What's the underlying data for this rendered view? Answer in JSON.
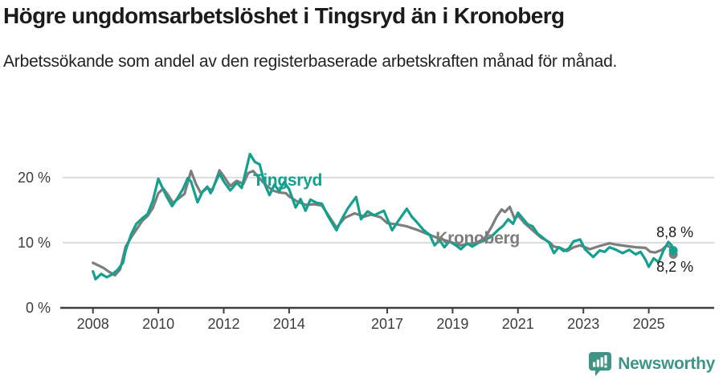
{
  "chart_data": {
    "type": "line",
    "title": "Högre ungdomsarbetslöshet i Tingsryd än i Kronoberg",
    "subtitle": "Arbetssökande som andel av den registerbaserade arbetskraften månad för månad.",
    "xlabel": "",
    "ylabel": "",
    "unit": "%",
    "xlim": [
      2007,
      2027
    ],
    "ylim": [
      0,
      23.8
    ],
    "grid": "horizontal",
    "x_ticks": [
      {
        "value": 2008,
        "label": "2008"
      },
      {
        "value": 2010,
        "label": "2010"
      },
      {
        "value": 2012,
        "label": "2012"
      },
      {
        "value": 2014,
        "label": "2014"
      },
      {
        "value": 2017,
        "label": "2017"
      },
      {
        "value": 2019,
        "label": "2019"
      },
      {
        "value": 2021,
        "label": "2021"
      },
      {
        "value": 2023,
        "label": "2023"
      },
      {
        "value": 2025,
        "label": "2025"
      }
    ],
    "y_ticks": [
      {
        "value": 0,
        "label": "0 %"
      },
      {
        "value": 10,
        "label": "10 %"
      },
      {
        "value": 20,
        "label": "20 %"
      }
    ],
    "colors": {
      "tingsryd": "#14A08E",
      "kronoberg": "#7d7d7d",
      "grid": "#dcdcdc",
      "axis": "#404040",
      "tick_label": "#3d3d3d",
      "end_label": "#1a1a1a"
    },
    "series": [
      {
        "name": "Kronoberg",
        "color": "#7d7d7d",
        "label_pos": [
          2018.48,
          10.7
        ],
        "end_label": "8,2 %",
        "end_label_pos": [
          2025.8,
          6.3
        ],
        "end_value": 8.2,
        "points": [
          [
            2008.0,
            6.9
          ],
          [
            2008.17,
            6.5
          ],
          [
            2008.33,
            6.1
          ],
          [
            2008.5,
            5.5
          ],
          [
            2008.67,
            5.0
          ],
          [
            2008.83,
            5.9
          ],
          [
            2009.0,
            9.4
          ],
          [
            2009.17,
            10.8
          ],
          [
            2009.33,
            12.0
          ],
          [
            2009.5,
            13.3
          ],
          [
            2009.67,
            14.1
          ],
          [
            2009.83,
            15.3
          ],
          [
            2010.0,
            17.6
          ],
          [
            2010.15,
            18.3
          ],
          [
            2010.3,
            17.3
          ],
          [
            2010.45,
            16.1
          ],
          [
            2010.6,
            16.7
          ],
          [
            2010.8,
            17.5
          ],
          [
            2011.0,
            21.0
          ],
          [
            2011.15,
            19.0
          ],
          [
            2011.3,
            17.6
          ],
          [
            2011.5,
            18.4
          ],
          [
            2011.65,
            18.0
          ],
          [
            2011.87,
            21.1
          ],
          [
            2012.0,
            20.2
          ],
          [
            2012.2,
            18.7
          ],
          [
            2012.4,
            19.5
          ],
          [
            2012.6,
            19.0
          ],
          [
            2012.75,
            20.7
          ],
          [
            2012.9,
            21.0
          ],
          [
            2013.1,
            19.8
          ],
          [
            2013.3,
            18.8
          ],
          [
            2013.5,
            18.0
          ],
          [
            2013.7,
            17.7
          ],
          [
            2013.9,
            17.6
          ],
          [
            2014.0,
            17.1
          ],
          [
            2014.25,
            16.3
          ],
          [
            2014.5,
            15.8
          ],
          [
            2014.75,
            15.9
          ],
          [
            2015.0,
            15.7
          ],
          [
            2015.2,
            14.2
          ],
          [
            2015.45,
            12.3
          ],
          [
            2015.7,
            13.8
          ],
          [
            2016.0,
            14.5
          ],
          [
            2016.3,
            14.0
          ],
          [
            2016.5,
            14.3
          ],
          [
            2016.8,
            13.9
          ],
          [
            2017.0,
            13.0
          ],
          [
            2017.3,
            12.8
          ],
          [
            2017.6,
            12.5
          ],
          [
            2017.9,
            12.0
          ],
          [
            2018.2,
            11.4
          ],
          [
            2018.5,
            10.8
          ],
          [
            2018.75,
            10.4
          ],
          [
            2019.0,
            10.0
          ],
          [
            2019.25,
            9.6
          ],
          [
            2019.5,
            9.8
          ],
          [
            2019.75,
            10.0
          ],
          [
            2020.0,
            10.8
          ],
          [
            2020.2,
            12.5
          ],
          [
            2020.35,
            14.0
          ],
          [
            2020.5,
            15.1
          ],
          [
            2020.6,
            14.7
          ],
          [
            2020.75,
            15.5
          ],
          [
            2020.9,
            13.6
          ],
          [
            2021.0,
            14.2
          ],
          [
            2021.2,
            13.0
          ],
          [
            2021.45,
            11.9
          ],
          [
            2021.7,
            10.8
          ],
          [
            2021.95,
            10.1
          ],
          [
            2022.1,
            9.4
          ],
          [
            2022.3,
            9.2
          ],
          [
            2022.5,
            8.7
          ],
          [
            2022.7,
            9.3
          ],
          [
            2022.9,
            9.6
          ],
          [
            2023.2,
            9.0
          ],
          [
            2023.5,
            9.5
          ],
          [
            2023.8,
            9.9
          ],
          [
            2024.0,
            9.7
          ],
          [
            2024.3,
            9.5
          ],
          [
            2024.6,
            9.3
          ],
          [
            2024.9,
            9.2
          ],
          [
            2025.05,
            8.6
          ],
          [
            2025.2,
            8.5
          ],
          [
            2025.4,
            8.9
          ],
          [
            2025.55,
            9.6
          ],
          [
            2025.65,
            9.3
          ],
          [
            2025.75,
            8.2
          ]
        ]
      },
      {
        "name": "Tingsryd",
        "color": "#14A08E",
        "label_pos": [
          2012.9,
          19.6
        ],
        "end_label": "8,8 %",
        "end_label_pos": [
          2025.8,
          11.6
        ],
        "end_value": 8.8,
        "points": [
          [
            2008.0,
            5.6
          ],
          [
            2008.08,
            4.4
          ],
          [
            2008.25,
            5.2
          ],
          [
            2008.42,
            4.7
          ],
          [
            2008.58,
            5.1
          ],
          [
            2008.75,
            5.8
          ],
          [
            2008.92,
            6.9
          ],
          [
            2009.0,
            8.8
          ],
          [
            2009.17,
            11.3
          ],
          [
            2009.33,
            12.9
          ],
          [
            2009.5,
            13.7
          ],
          [
            2009.67,
            14.4
          ],
          [
            2009.83,
            16.4
          ],
          [
            2010.0,
            19.8
          ],
          [
            2010.08,
            18.9
          ],
          [
            2010.25,
            17.1
          ],
          [
            2010.42,
            15.6
          ],
          [
            2010.58,
            16.8
          ],
          [
            2010.75,
            18.2
          ],
          [
            2010.9,
            19.9
          ],
          [
            2011.0,
            19.4
          ],
          [
            2011.2,
            16.2
          ],
          [
            2011.35,
            17.8
          ],
          [
            2011.5,
            18.6
          ],
          [
            2011.6,
            17.6
          ],
          [
            2011.87,
            20.6
          ],
          [
            2012.0,
            19.4
          ],
          [
            2012.2,
            18.0
          ],
          [
            2012.4,
            19.2
          ],
          [
            2012.55,
            18.4
          ],
          [
            2012.7,
            21.5
          ],
          [
            2012.8,
            23.6
          ],
          [
            2012.95,
            22.4
          ],
          [
            2013.1,
            22.0
          ],
          [
            2013.25,
            19.0
          ],
          [
            2013.4,
            17.3
          ],
          [
            2013.55,
            18.9
          ],
          [
            2013.7,
            17.9
          ],
          [
            2013.85,
            19.3
          ],
          [
            2014.0,
            18.2
          ],
          [
            2014.2,
            15.4
          ],
          [
            2014.35,
            16.7
          ],
          [
            2014.5,
            14.9
          ],
          [
            2014.65,
            16.6
          ],
          [
            2014.85,
            16.1
          ],
          [
            2015.0,
            16.0
          ],
          [
            2015.2,
            14.0
          ],
          [
            2015.45,
            11.9
          ],
          [
            2015.6,
            13.5
          ],
          [
            2015.8,
            15.3
          ],
          [
            2016.05,
            17.0
          ],
          [
            2016.2,
            13.6
          ],
          [
            2016.4,
            14.8
          ],
          [
            2016.6,
            14.2
          ],
          [
            2016.9,
            14.9
          ],
          [
            2017.15,
            11.9
          ],
          [
            2017.35,
            13.4
          ],
          [
            2017.6,
            15.2
          ],
          [
            2017.75,
            14.0
          ],
          [
            2017.9,
            13.2
          ],
          [
            2018.1,
            12.0
          ],
          [
            2018.3,
            11.2
          ],
          [
            2018.45,
            9.6
          ],
          [
            2018.6,
            10.4
          ],
          [
            2018.75,
            9.3
          ],
          [
            2018.9,
            10.2
          ],
          [
            2019.1,
            9.6
          ],
          [
            2019.25,
            9.0
          ],
          [
            2019.45,
            9.9
          ],
          [
            2019.6,
            9.4
          ],
          [
            2019.8,
            10.0
          ],
          [
            2020.0,
            10.4
          ],
          [
            2020.2,
            11.0
          ],
          [
            2020.4,
            12.0
          ],
          [
            2020.55,
            12.6
          ],
          [
            2020.7,
            13.6
          ],
          [
            2020.85,
            12.9
          ],
          [
            2021.0,
            14.6
          ],
          [
            2021.15,
            13.7
          ],
          [
            2021.3,
            12.8
          ],
          [
            2021.45,
            12.5
          ],
          [
            2021.6,
            11.4
          ],
          [
            2021.8,
            10.6
          ],
          [
            2021.95,
            10.0
          ],
          [
            2022.1,
            8.4
          ],
          [
            2022.25,
            9.3
          ],
          [
            2022.4,
            8.7
          ],
          [
            2022.55,
            9.1
          ],
          [
            2022.7,
            10.2
          ],
          [
            2022.9,
            10.5
          ],
          [
            2023.05,
            9.0
          ],
          [
            2023.3,
            7.8
          ],
          [
            2023.5,
            8.8
          ],
          [
            2023.65,
            8.6
          ],
          [
            2023.8,
            9.3
          ],
          [
            2024.0,
            8.9
          ],
          [
            2024.2,
            8.4
          ],
          [
            2024.4,
            8.9
          ],
          [
            2024.6,
            8.2
          ],
          [
            2024.75,
            8.6
          ],
          [
            2024.9,
            7.4
          ],
          [
            2025.0,
            6.3
          ],
          [
            2025.15,
            7.6
          ],
          [
            2025.3,
            7.0
          ],
          [
            2025.45,
            8.8
          ],
          [
            2025.6,
            10.1
          ],
          [
            2025.7,
            9.6
          ],
          [
            2025.75,
            8.8
          ]
        ]
      }
    ]
  },
  "footer": {
    "brand": "Newsworthy",
    "logo_color": "#3F9488"
  }
}
